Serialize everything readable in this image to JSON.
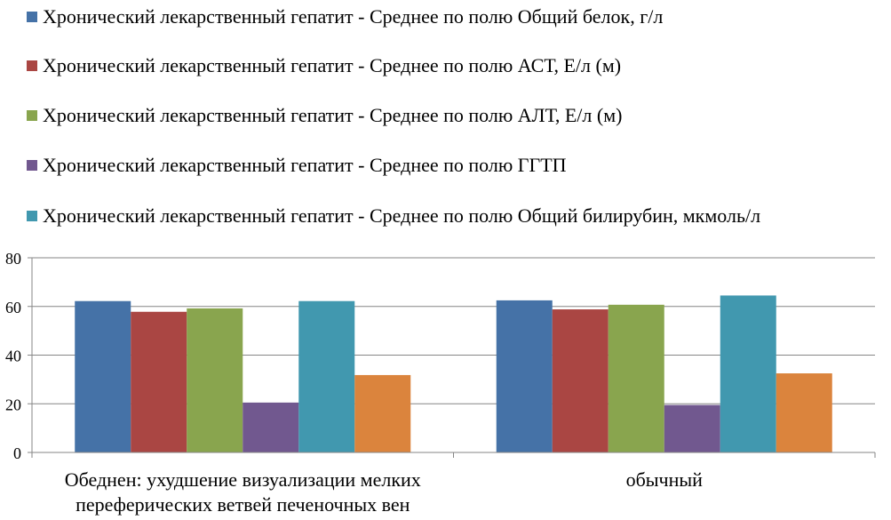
{
  "chart_data": {
    "type": "bar",
    "title": "",
    "xlabel": "",
    "ylabel": "",
    "ylim": [
      0,
      80
    ],
    "yticks": [
      0,
      20,
      40,
      60,
      80
    ],
    "grid": true,
    "legend_placement": "top",
    "categories": [
      [
        "Обеднен: ухудшение визуализации мелких",
        "переферических ветвей печеночных вен"
      ],
      [
        "обычный"
      ]
    ],
    "series": [
      {
        "name": "Хронический лекарственный гепатит - Среднее по полю Общий белок, г/л",
        "color": "#4572A7",
        "values": [
          62.2,
          62.5
        ],
        "show_in_legend": true
      },
      {
        "name": "Хронический лекарственный гепатит - Среднее по полю АСТ, Е/л (м)",
        "color": "#AA4643",
        "values": [
          57.8,
          58.8
        ],
        "show_in_legend": true
      },
      {
        "name": "Хронический лекарственный гепатит - Среднее по полю АЛТ, Е/л (м)",
        "color": "#89A54E",
        "values": [
          59.2,
          60.7
        ],
        "show_in_legend": true
      },
      {
        "name": "Хронический лекарственный гепатит - Среднее по полю ГГТП",
        "color": "#71588F",
        "values": [
          20.5,
          19.5
        ],
        "show_in_legend": true
      },
      {
        "name": "Хронический лекарственный гепатит - Среднее по полю Общий билирубин, мкмоль/л",
        "color": "#4198AF",
        "values": [
          62.2,
          64.5
        ],
        "show_in_legend": true
      },
      {
        "name": "",
        "color": "#DB843D",
        "values": [
          31.8,
          32.5
        ],
        "show_in_legend": false
      }
    ]
  }
}
